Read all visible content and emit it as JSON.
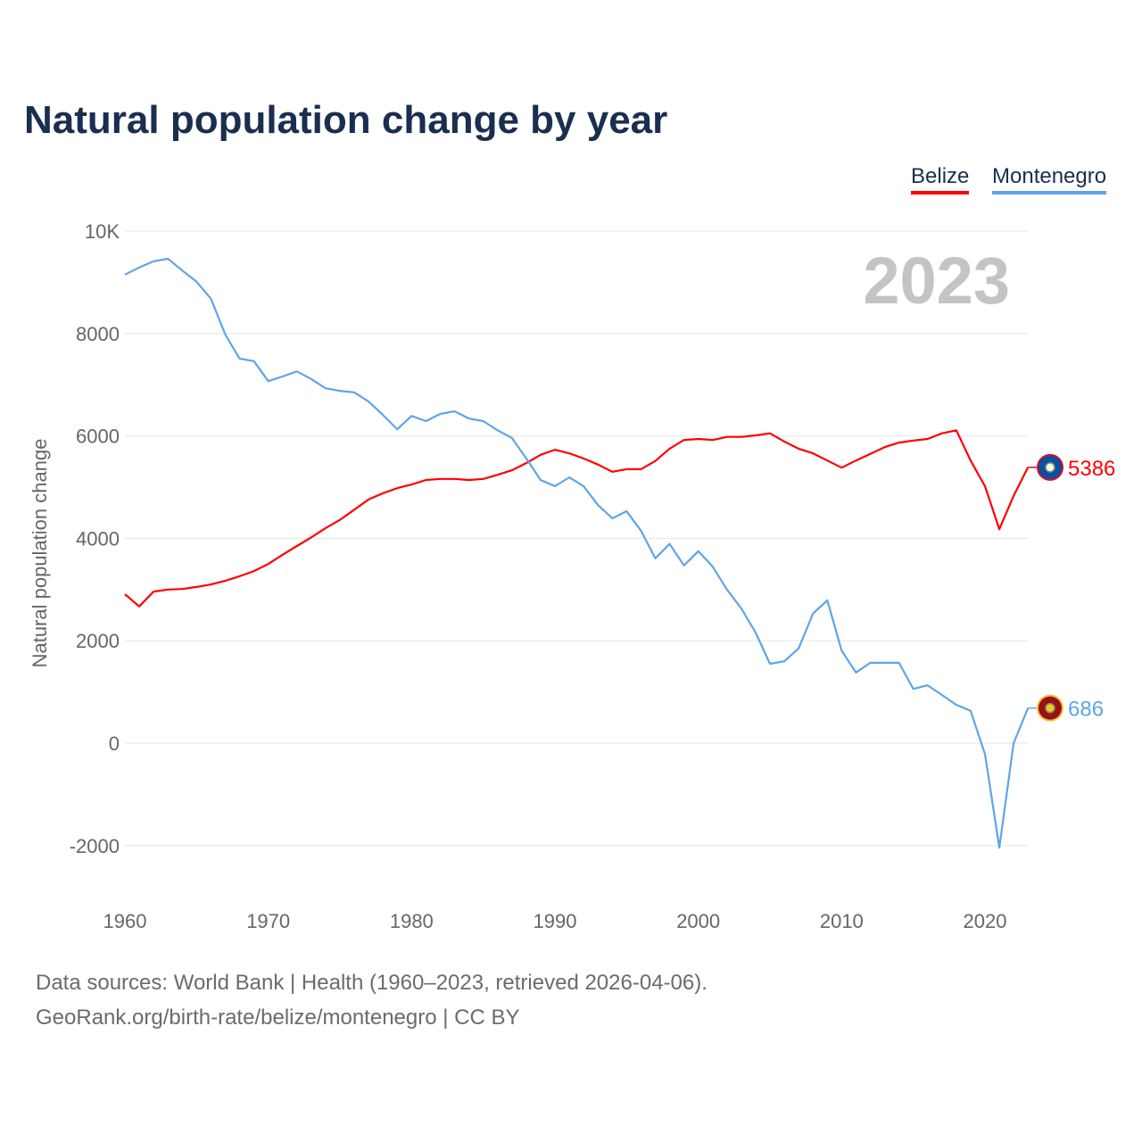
{
  "title": "Natural population change by year",
  "legend": [
    {
      "name": "Belize",
      "color": "#ff0000"
    },
    {
      "name": "Montenegro",
      "color": "#5ea5e8"
    }
  ],
  "year_label": "2023",
  "footer": {
    "line1": "Data sources: World Bank | Health (1960–2023, retrieved 2026-04-06).",
    "line2": "GeoRank.org/birth-rate/belize/montenegro | CC BY"
  },
  "chart_data": {
    "type": "line",
    "title": "Natural population change by year",
    "xlabel": "",
    "ylabel": "Natural population change",
    "xlim": [
      1960,
      2023
    ],
    "ylim": [
      -2000,
      10000
    ],
    "x_ticks": [
      "1960",
      "1970",
      "1980",
      "1990",
      "2000",
      "2010",
      "2020"
    ],
    "y_ticks": [
      {
        "value": 10000,
        "label": "10K"
      },
      {
        "value": 8000,
        "label": "8000"
      },
      {
        "value": 6000,
        "label": "6000"
      },
      {
        "value": 4000,
        "label": "4000"
      },
      {
        "value": 2000,
        "label": "2000"
      },
      {
        "value": 0,
        "label": "0"
      },
      {
        "value": -2000,
        "label": "-2000"
      }
    ],
    "grid": true,
    "legend_position": "top-right",
    "x_start": 1960,
    "series": [
      {
        "name": "Belize",
        "color": "#ff0000",
        "end_label": "5386",
        "values": [
          2910,
          2670,
          2960,
          3000,
          3010,
          3050,
          3100,
          3170,
          3260,
          3360,
          3500,
          3680,
          3850,
          4020,
          4200,
          4360,
          4560,
          4760,
          4880,
          4980,
          5050,
          5140,
          5160,
          5160,
          5140,
          5160,
          5240,
          5330,
          5470,
          5630,
          5730,
          5660,
          5560,
          5440,
          5300,
          5350,
          5350,
          5510,
          5750,
          5920,
          5940,
          5920,
          5980,
          5980,
          6010,
          6050,
          5890,
          5750,
          5660,
          5520,
          5380,
          5520,
          5650,
          5780,
          5870,
          5910,
          5940,
          6050,
          6110,
          5520,
          5020,
          4180,
          4830,
          5386
        ]
      },
      {
        "name": "Montenegro",
        "color": "#5ea5e8",
        "end_label": "686",
        "values": [
          9150,
          9290,
          9410,
          9460,
          9230,
          9010,
          8680,
          7980,
          7510,
          7460,
          7070,
          7160,
          7260,
          7110,
          6930,
          6880,
          6850,
          6670,
          6410,
          6130,
          6390,
          6290,
          6430,
          6480,
          6340,
          6290,
          6110,
          5960,
          5560,
          5140,
          5020,
          5190,
          5020,
          4650,
          4390,
          4530,
          4150,
          3610,
          3890,
          3470,
          3750,
          3450,
          3000,
          2630,
          2160,
          1550,
          1600,
          1850,
          2530,
          2790,
          1810,
          1380,
          1570,
          1570,
          1570,
          1060,
          1130,
          940,
          750,
          630,
          -210,
          -2040,
          0,
          686
        ]
      }
    ]
  }
}
